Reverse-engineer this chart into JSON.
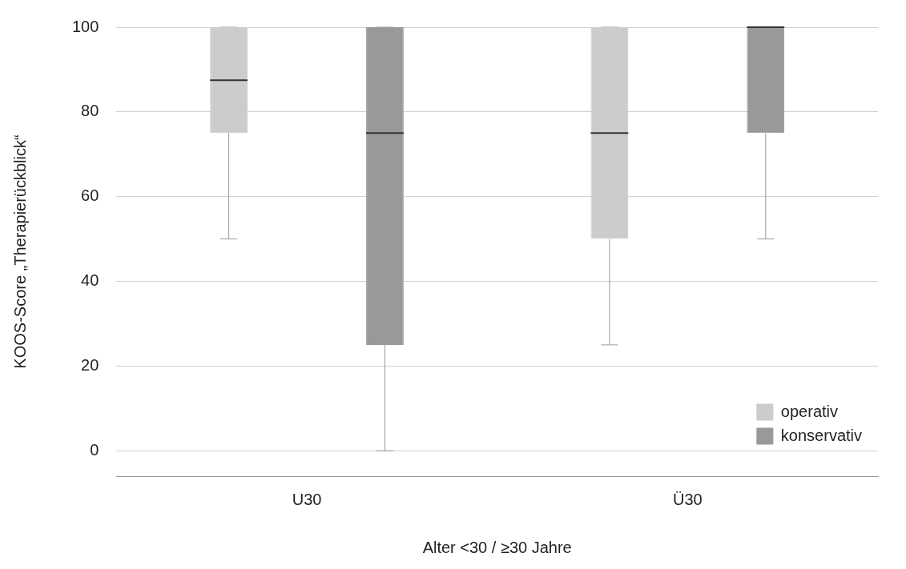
{
  "chart_data": {
    "type": "box",
    "xlabel": "Alter <30 / ≥30 Jahre",
    "ylabel": "KOOS-Score „Therapierückblick“",
    "categories": [
      "U30",
      "Ü30"
    ],
    "series": [
      {
        "name": "operativ",
        "color": "#cccccc",
        "boxes": [
          {
            "low": 50,
            "q1": 75,
            "median": 87.5,
            "q3": 100,
            "high": 100
          },
          {
            "low": 25,
            "q1": 50,
            "median": 75,
            "q3": 100,
            "high": 100
          }
        ]
      },
      {
        "name": "konservativ",
        "color": "#999999",
        "boxes": [
          {
            "low": 0,
            "q1": 25,
            "median": 75,
            "q3": 100,
            "high": 100
          },
          {
            "low": 50,
            "q1": 75,
            "median": 100,
            "q3": 100,
            "high": 100
          }
        ]
      }
    ],
    "ylim": [
      -6,
      100
    ],
    "yticks": [
      0,
      20,
      40,
      60,
      80,
      100
    ],
    "grid": "y",
    "legend": "bottom right"
  }
}
